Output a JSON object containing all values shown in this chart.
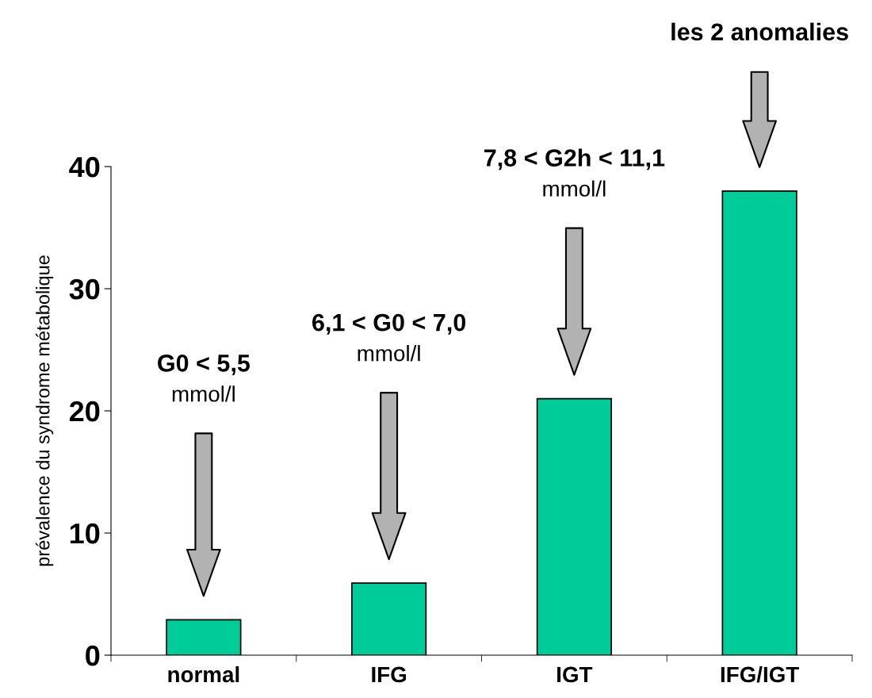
{
  "chart_data": {
    "type": "bar",
    "ylabel": "prévalence du syndrome métabolique",
    "categories": [
      "normal",
      "IFG",
      "IGT",
      "IFG/IGT"
    ],
    "values": [
      2.9,
      5.9,
      21.0,
      38.0
    ],
    "color": "#00cc99",
    "ylim": [
      0,
      40
    ],
    "yticks": [
      0,
      10,
      20,
      30,
      40
    ],
    "annotations": [
      "G0 < 5,5\nmmol/l",
      "6,1 < G0 < 7,0\nmmol/l",
      "7,8 < G2h < 11,1\nmmol/l",
      "les 2 anomalies"
    ]
  }
}
